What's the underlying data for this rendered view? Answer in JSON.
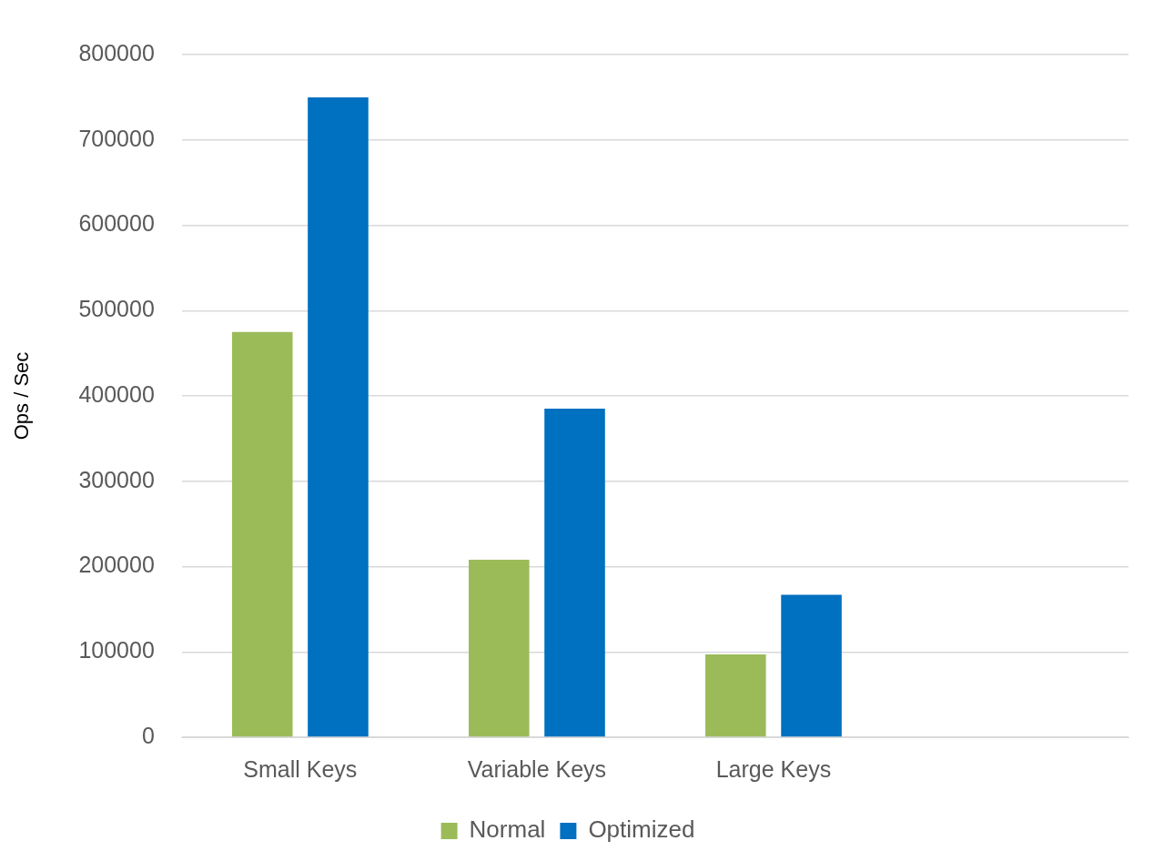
{
  "chart_data": {
    "type": "bar",
    "ylabel": "Ops / Sec",
    "categories": [
      "Small Keys",
      "Variable Keys",
      "Large Keys",
      null
    ],
    "series": [
      {
        "name": "Normal",
        "color": "#9bbb59",
        "values": [
          475000,
          208000,
          97000,
          null
        ]
      },
      {
        "name": "Optimized",
        "color": "#0070c0",
        "values": [
          750000,
          385000,
          167000,
          null
        ]
      }
    ],
    "ylim": [
      0,
      800000
    ],
    "yticks": [
      0,
      100000,
      200000,
      300000,
      400000,
      500000,
      600000,
      700000,
      800000
    ],
    "grid": "y",
    "legend": "bottom"
  }
}
